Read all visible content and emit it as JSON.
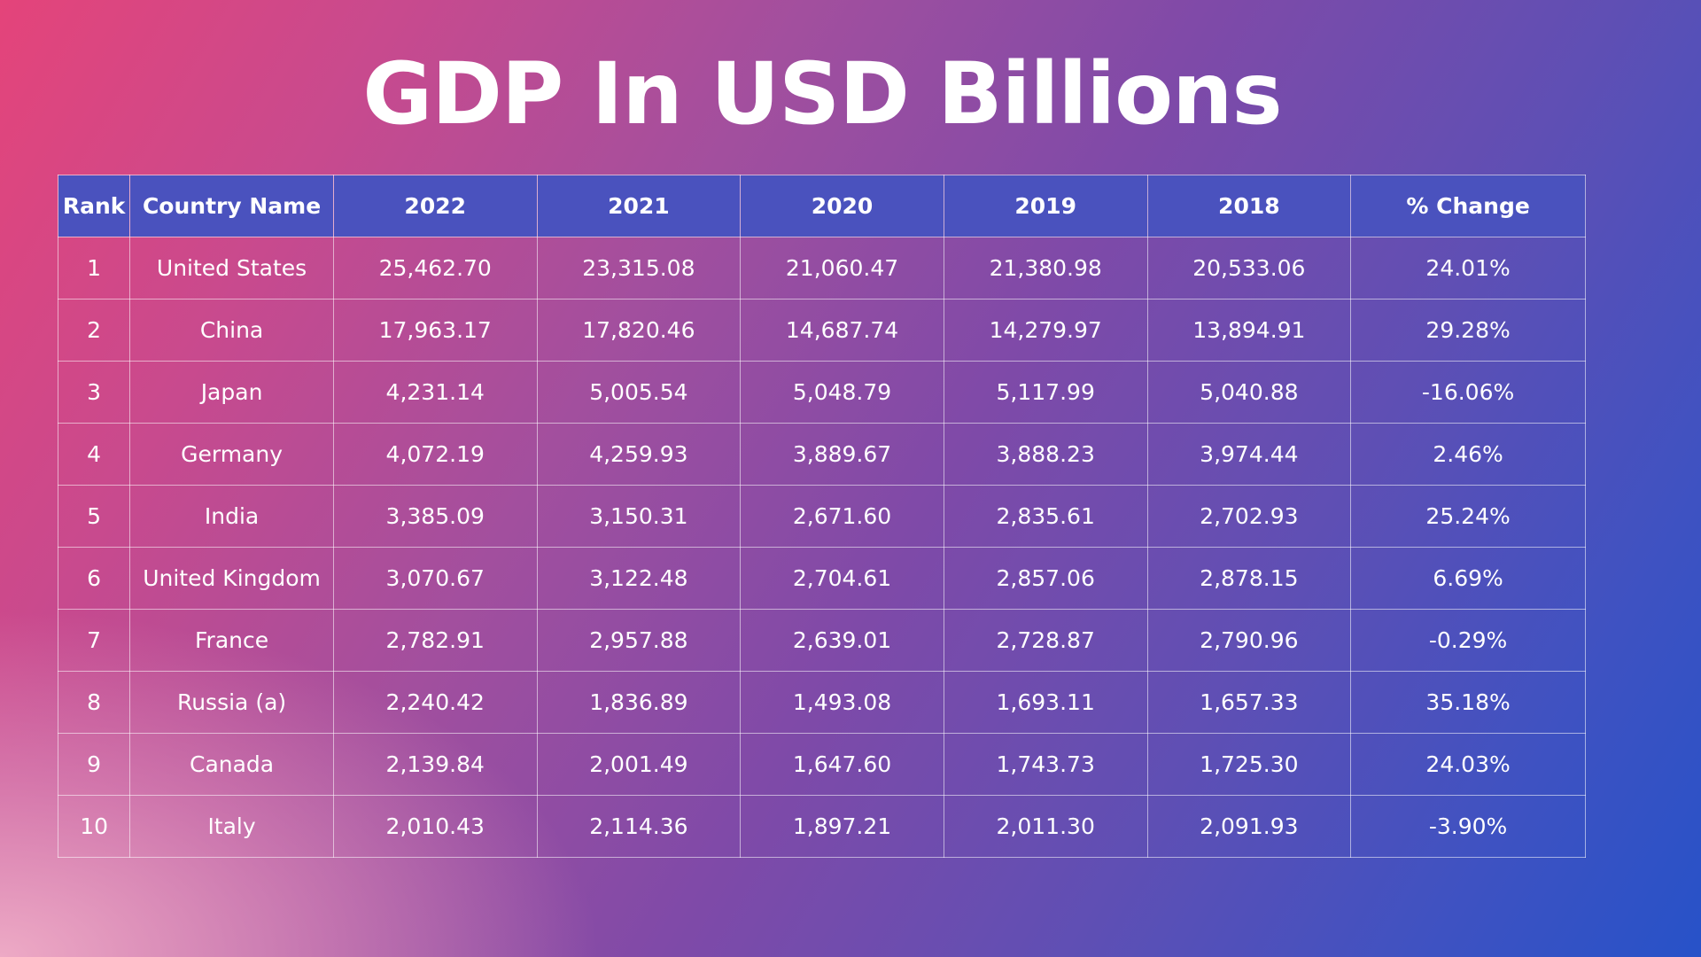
{
  "chart_data": {
    "type": "table",
    "title": "GDP In USD Billions",
    "columns": [
      "Rank",
      "Country Name",
      "2022",
      "2021",
      "2020",
      "2019",
      "2018",
      "% Change"
    ],
    "rows": [
      [
        "1",
        "United States",
        "25,462.70",
        "23,315.08",
        "21,060.47",
        "21,380.98",
        "20,533.06",
        "24.01%"
      ],
      [
        "2",
        "China",
        "17,963.17",
        "17,820.46",
        "14,687.74",
        "14,279.97",
        "13,894.91",
        "29.28%"
      ],
      [
        "3",
        "Japan",
        "4,231.14",
        "5,005.54",
        "5,048.79",
        "5,117.99",
        "5,040.88",
        "-16.06%"
      ],
      [
        "4",
        "Germany",
        "4,072.19",
        "4,259.93",
        "3,889.67",
        "3,888.23",
        "3,974.44",
        "2.46%"
      ],
      [
        "5",
        "India",
        "3,385.09",
        "3,150.31",
        "2,671.60",
        "2,835.61",
        "2,702.93",
        "25.24%"
      ],
      [
        "6",
        "United Kingdom",
        "3,070.67",
        "3,122.48",
        "2,704.61",
        "2,857.06",
        "2,878.15",
        "6.69%"
      ],
      [
        "7",
        "France",
        "2,782.91",
        "2,957.88",
        "2,639.01",
        "2,728.87",
        "2,790.96",
        "-0.29%"
      ],
      [
        "8",
        "Russia (a)",
        "2,240.42",
        "1,836.89",
        "1,493.08",
        "1,693.11",
        "1,657.33",
        "35.18%"
      ],
      [
        "9",
        "Canada",
        "2,139.84",
        "2,001.49",
        "1,647.60",
        "1,743.73",
        "1,725.30",
        "24.03%"
      ],
      [
        "10",
        "Italy",
        "2,010.43",
        "2,114.36",
        "1,897.21",
        "2,011.30",
        "2,091.93",
        "-3.90%"
      ]
    ],
    "colors": {
      "header_background": "#4a52be",
      "text": "#ffffff",
      "gradient_start": "#e4447a",
      "gradient_end": "#2752c8"
    }
  }
}
